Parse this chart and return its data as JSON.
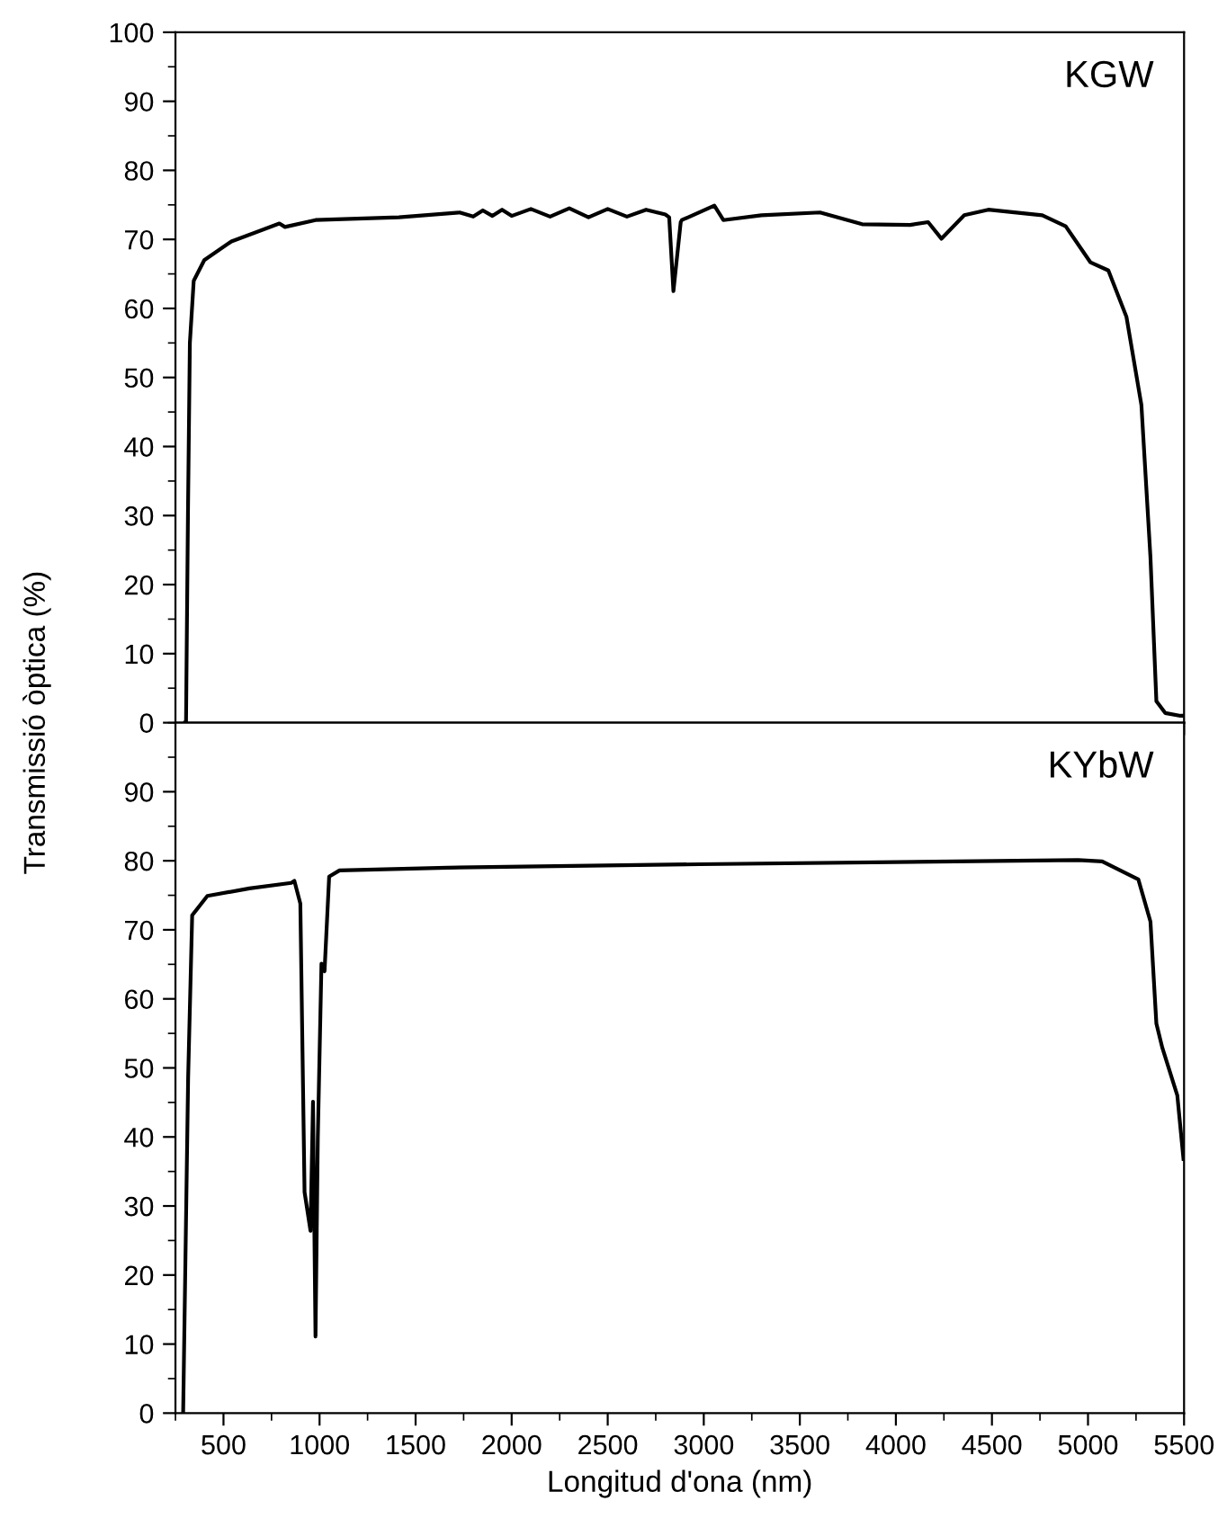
{
  "chart_data": [
    {
      "type": "line",
      "annotations": [
        "KGW"
      ],
      "xlim": [
        250,
        5500
      ],
      "ylim": [
        0,
        100
      ],
      "xticks": [
        500,
        1000,
        1500,
        2000,
        2500,
        3000,
        3500,
        4000,
        4500,
        5000,
        5500
      ],
      "yticks": [
        0,
        10,
        20,
        30,
        40,
        50,
        60,
        70,
        80,
        90,
        100
      ],
      "tick_labels": "y",
      "ylabel": "Transmissió òptica (%)",
      "series": [
        {
          "color": "#000000",
          "x": [
            300,
            305,
            315,
            325,
            345,
            400,
            541,
            791,
            820,
            979,
            1413,
            1729,
            1800,
            1850,
            1900,
            1950,
            2000,
            2100,
            2200,
            2300,
            2400,
            2500,
            2600,
            2700,
            2800,
            2820,
            2842,
            2880,
            2886,
            3055,
            3102,
            3300,
            3605,
            3824,
            4074,
            4168,
            4237,
            4356,
            4481,
            4762,
            4884,
            5012,
            5106,
            5200,
            5278,
            5325,
            5356,
            5402,
            5481,
            5500
          ],
          "values": [
            0,
            0,
            30,
            55,
            64,
            67,
            69.7,
            72.3,
            71.8,
            72.8,
            73.2,
            73.9,
            73.3,
            74.2,
            73.4,
            74.3,
            73.4,
            74.4,
            73.3,
            74.5,
            73.2,
            74.4,
            73.3,
            74.3,
            73.6,
            73.2,
            62.5,
            72.5,
            72.8,
            74.9,
            72.8,
            73.5,
            73.9,
            72.2,
            72.1,
            72.5,
            70.1,
            73.5,
            74.3,
            73.5,
            71.9,
            66.7,
            65.5,
            58.8,
            46.0,
            24,
            3.1,
            1.4,
            1.0,
            1.0
          ]
        }
      ]
    },
    {
      "type": "line",
      "annotations": [
        "KYbW"
      ],
      "xlim": [
        250,
        5500
      ],
      "ylim": [
        0,
        100
      ],
      "xticks": [
        500,
        1000,
        1500,
        2000,
        2500,
        3000,
        3500,
        4000,
        4500,
        5000,
        5500
      ],
      "yticks": [
        0,
        10,
        20,
        30,
        40,
        50,
        60,
        70,
        80,
        90
      ],
      "xlabel": "Longitud d'ona (nm)",
      "series": [
        {
          "color": "#000000",
          "x": [
            290,
            316,
            337,
            416,
            635,
            853,
            869,
            900,
            922,
            953,
            966,
            979,
            991,
            1010,
            1026,
            1050,
            1104,
            1666,
            2980,
            4949,
            5074,
            5262,
            5325,
            5356,
            5387,
            5465,
            5497
          ],
          "values": [
            0,
            48.6,
            72.1,
            74.9,
            76.0,
            76.8,
            77.1,
            73.8,
            32.0,
            26.4,
            45.1,
            11.1,
            39.9,
            65.1,
            64,
            77.7,
            78.6,
            79.0,
            79.5,
            80.1,
            79.9,
            77.3,
            71.2,
            56.4,
            52.9,
            46.0,
            36.8
          ]
        }
      ]
    }
  ]
}
